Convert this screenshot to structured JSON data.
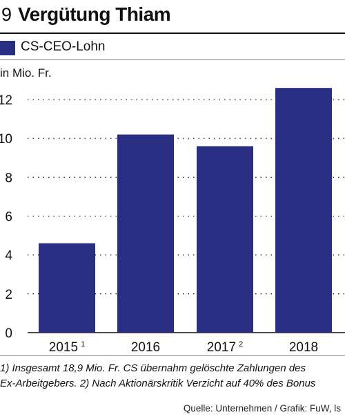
{
  "header": {
    "number": "9",
    "title": "Vergütung Thiam"
  },
  "legend": {
    "label": "CS-CEO-Lohn",
    "color": "#2a2e83"
  },
  "unit_label": "in Mio. Fr.",
  "footnotes": [
    "1) Insgesamt  18,9 Mio. Fr. CS übernahm gelöschte Zahlungen des",
    "Ex-Arbeitgebers.   2) Nach Aktionärskritik Verzicht auf 40% des Bonus"
  ],
  "source": "Quelle: Unternehmen / Grafik: FuW, ls",
  "chart_data": {
    "type": "bar",
    "title": "Vergütung Thiam",
    "ylabel": "in Mio. Fr.",
    "xlabel": "",
    "categories": [
      "2015",
      "2016",
      "2017",
      "2018"
    ],
    "category_footnotes": [
      "1",
      "",
      "2",
      ""
    ],
    "series": [
      {
        "name": "CS-CEO-Lohn",
        "values": [
          4.6,
          10.2,
          9.6,
          12.6
        ],
        "color": "#2a2e83"
      }
    ],
    "ylim": [
      0,
      13
    ],
    "yticks": [
      0,
      2,
      4,
      6,
      8,
      10,
      12
    ],
    "grid": "dotted-horizontal",
    "legend_position": "top-left"
  }
}
